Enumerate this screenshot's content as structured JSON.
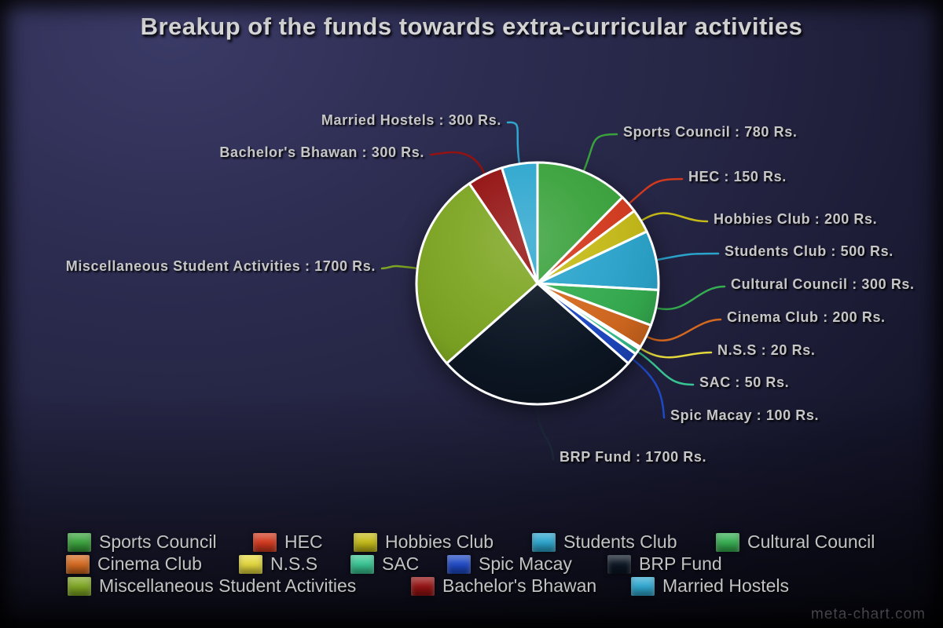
{
  "title": "Breakup of the funds towards extra-curricular activities",
  "watermark": "meta-chart.com",
  "chart_data": {
    "type": "pie",
    "title": "Breakup of the funds towards extra-curricular activities",
    "unit": "Rs.",
    "total": 6300,
    "start_angle_deg": 0,
    "direction": "clockwise",
    "legend_position": "bottom",
    "categories": [
      "Sports Council",
      "HEC",
      "Hobbies Club",
      "Students Club",
      "Cultural Council",
      "Cinema Club",
      "N.S.S",
      "SAC",
      "Spic Macay",
      "BRP Fund",
      "Miscellaneous Student Activities",
      "Bachelor's Bhawan",
      "Married Hostels"
    ],
    "values": [
      780,
      150,
      200,
      500,
      300,
      200,
      20,
      50,
      100,
      1700,
      1700,
      300,
      300
    ],
    "colors": [
      "#3aa23c",
      "#d2391e",
      "#c4ba18",
      "#2ba4cc",
      "#35ad50",
      "#d4691f",
      "#e3d73d",
      "#38c492",
      "#1f49c4",
      "#0c1624",
      "#7ea623",
      "#941212",
      "#2fa7cf"
    ],
    "callouts": [
      "Sports Council : 780 Rs.",
      "HEC : 150 Rs.",
      "Hobbies Club : 200 Rs.",
      "Students Club : 500 Rs.",
      "Cultural Council : 300 Rs.",
      "Cinema Club : 200 Rs.",
      "N.S.S : 20 Rs.",
      "SAC : 50 Rs.",
      "Spic Macay : 100 Rs.",
      "BRP Fund : 1700 Rs.",
      "Miscellaneous Student Activities : 1700 Rs.",
      "Bachelor's Bhawan : 300 Rs.",
      "Married Hostels : 300 Rs."
    ],
    "legend_rows": [
      [
        0,
        1,
        2,
        3,
        4
      ],
      [
        5,
        6,
        7,
        8,
        9
      ],
      [
        10,
        11,
        12
      ]
    ]
  }
}
